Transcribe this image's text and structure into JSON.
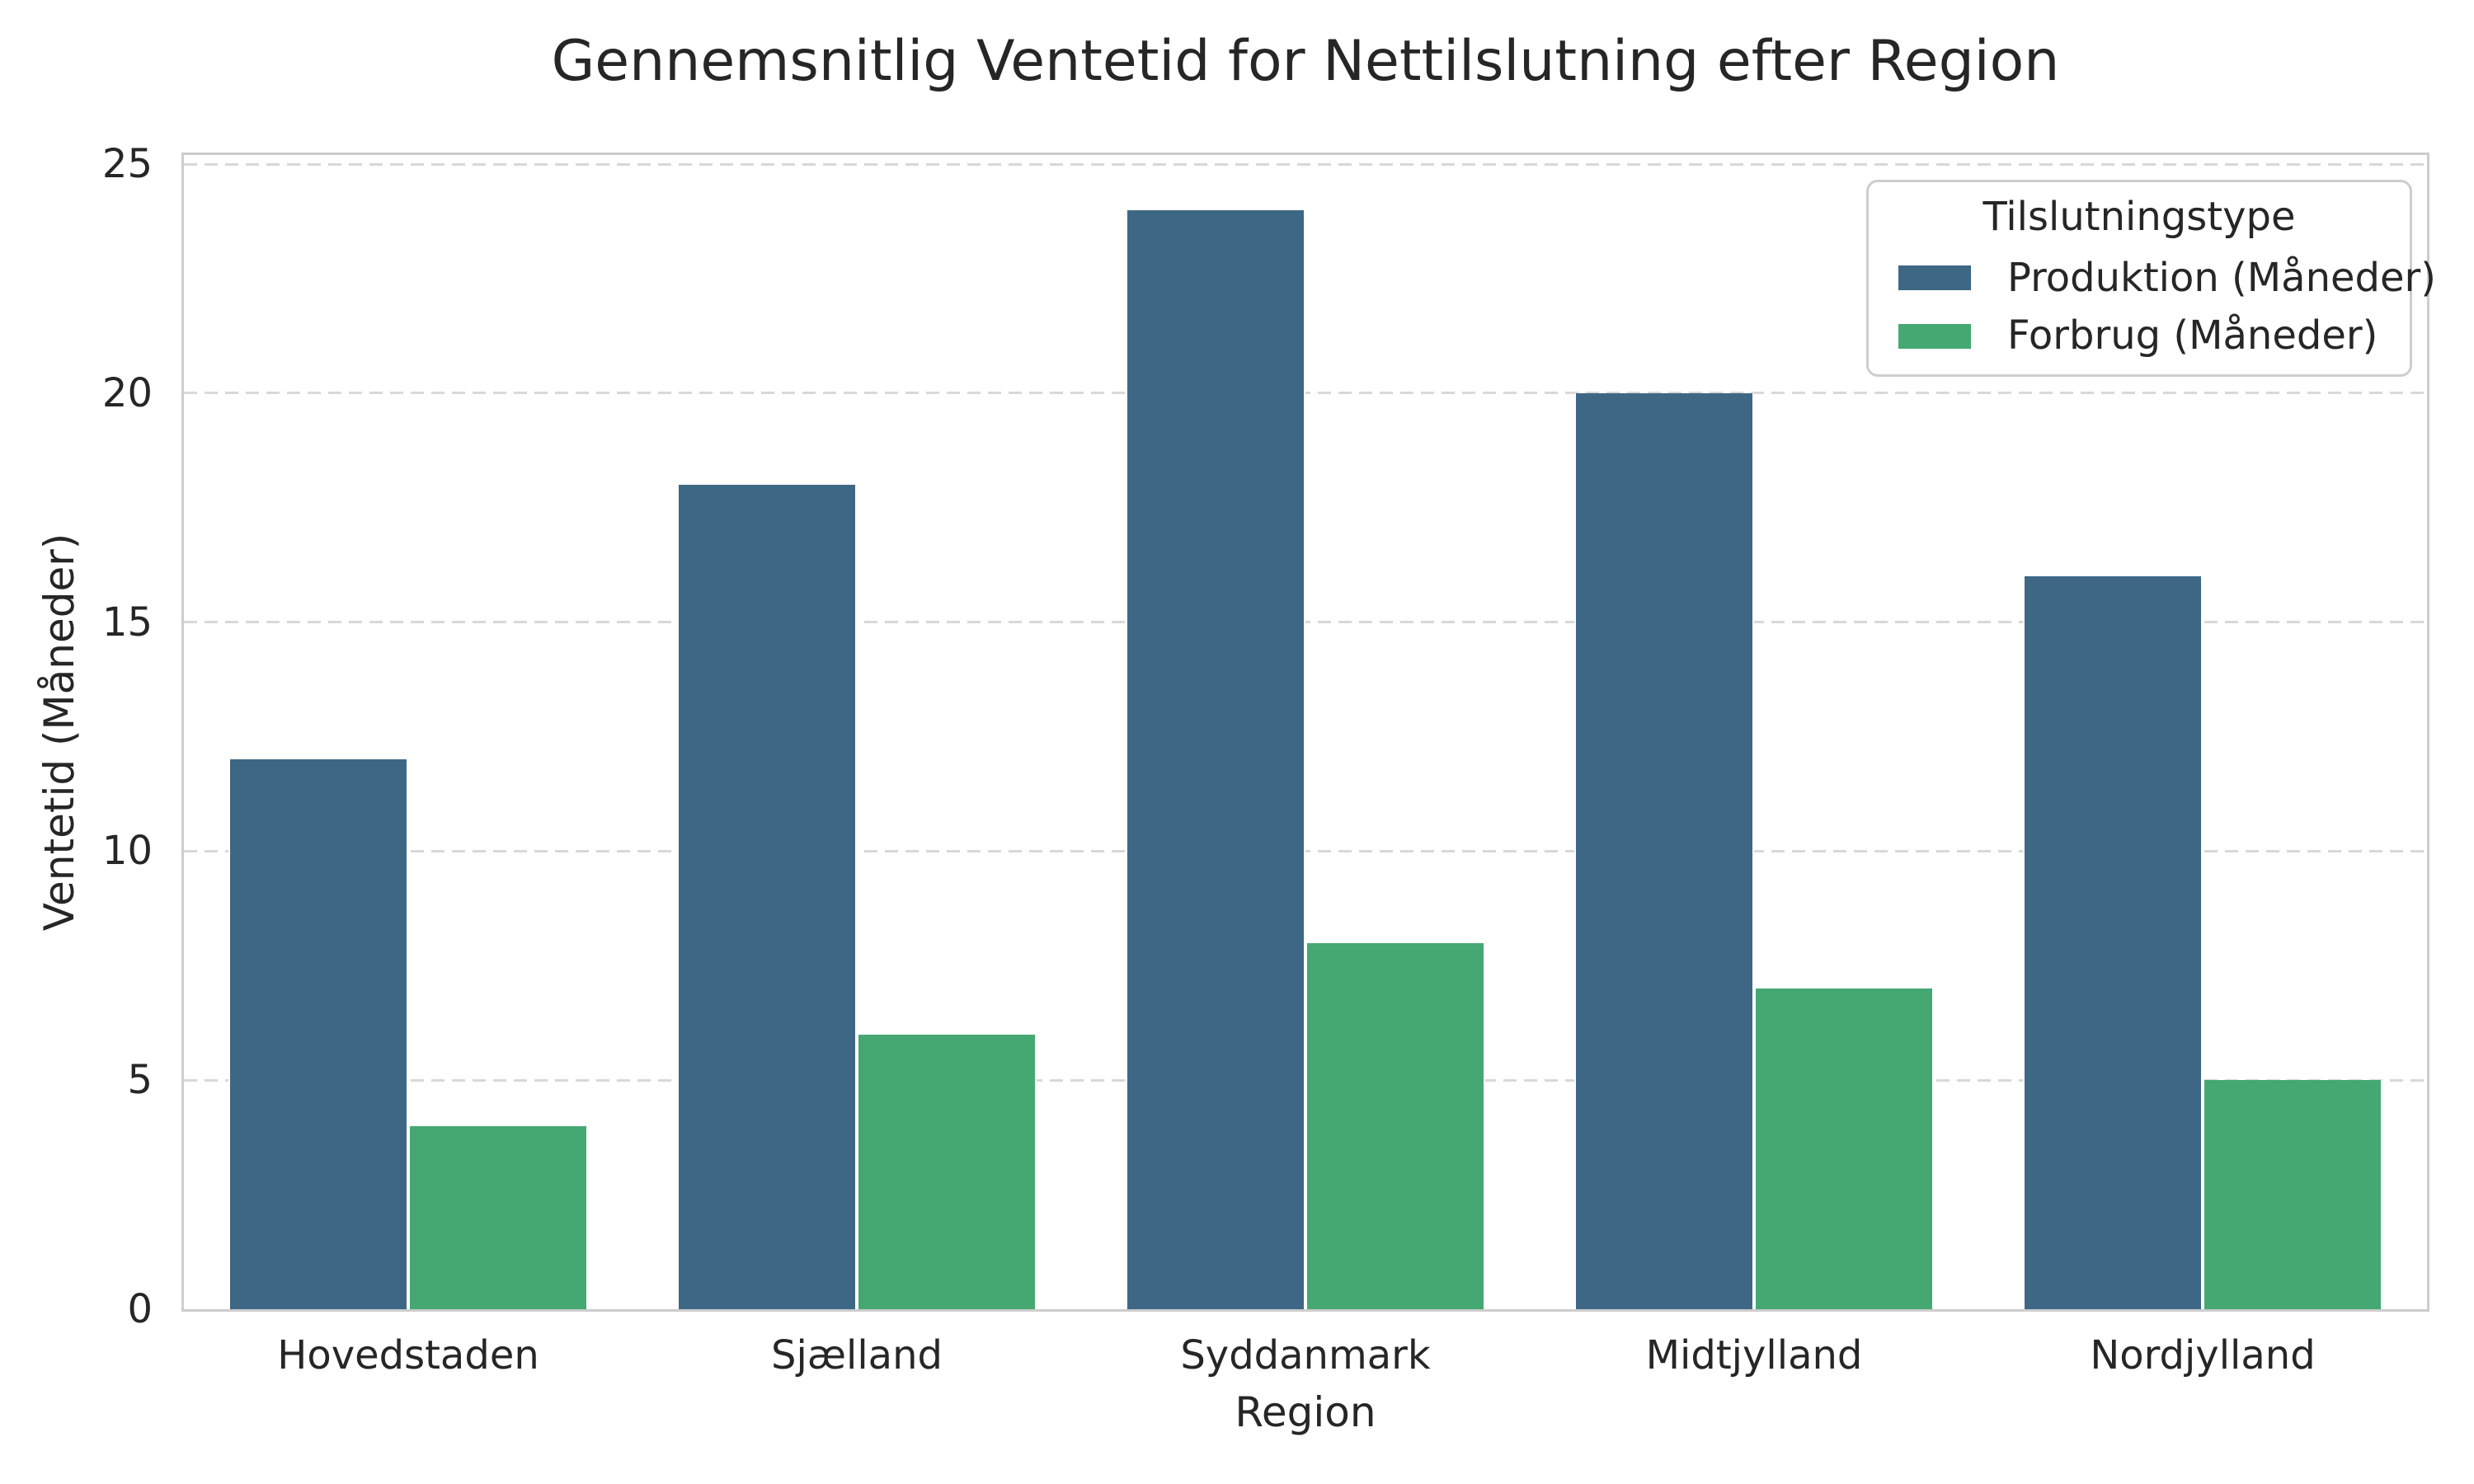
{
  "chart_data": {
    "type": "bar",
    "title": "Gennemsnitlig Ventetid for Nettilslutning efter Region",
    "xlabel": "Region",
    "ylabel": "Ventetid (Måneder)",
    "categories": [
      "Hovedstaden",
      "Sjælland",
      "Syddanmark",
      "Midtjylland",
      "Nordjylland"
    ],
    "series": [
      {
        "name": "Produktion (Måneder)",
        "color": "#3E6785",
        "values": [
          12,
          18,
          24,
          20,
          16
        ]
      },
      {
        "name": "Forbrug (Måneder)",
        "color": "#45A873",
        "values": [
          4,
          6,
          8,
          7,
          5
        ]
      }
    ],
    "legend_title": "Tilslutningstype",
    "legend_position": "upper right",
    "y_ticks": [
      0,
      5,
      10,
      15,
      20,
      25
    ],
    "ylim": [
      0,
      25.2
    ],
    "grid": "horizontal dashed",
    "colors": {
      "text": "#262626",
      "spine": "#cdcdcd",
      "gridline": "#d8d8d8",
      "background": "#ffffff"
    }
  }
}
